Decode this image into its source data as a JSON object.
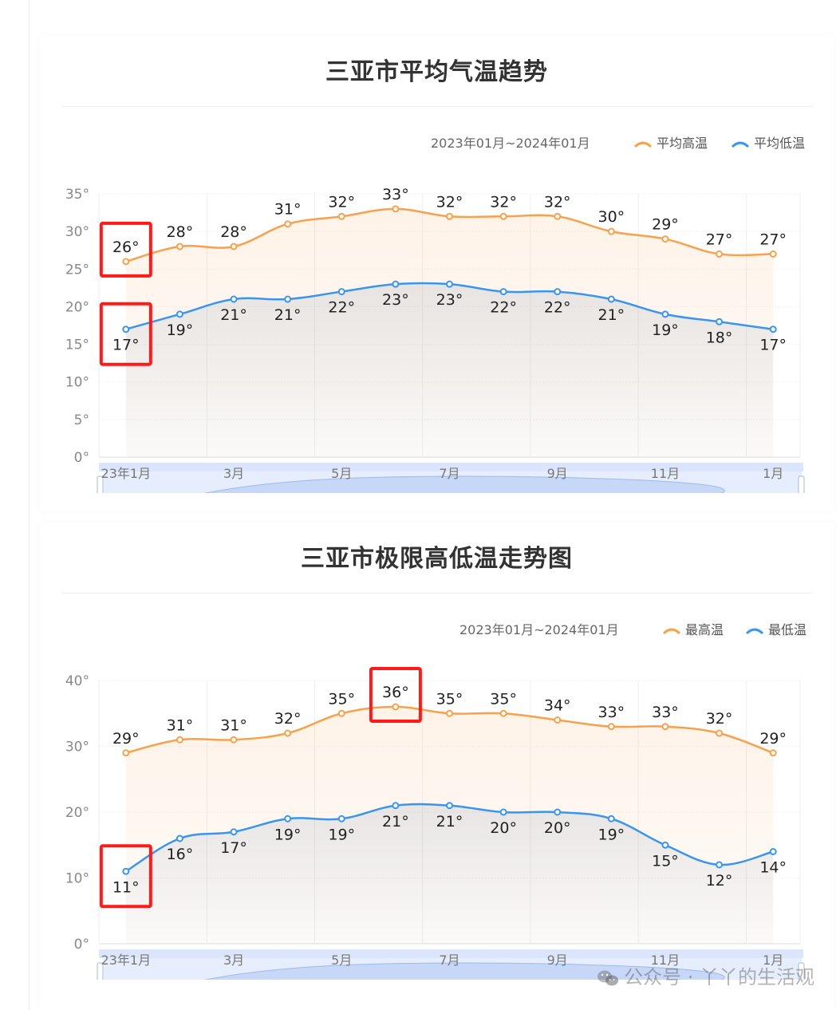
{
  "charts": [
    {
      "title": "三亚市平均气温趋势",
      "range_label": "2023年01月~2024年01月",
      "legend": [
        "平均高温",
        "平均低温"
      ],
      "colors": {
        "high": "#f7a14c",
        "low": "#3a95ee",
        "highlight": "#ff1a1a"
      }
    },
    {
      "title": "三亚市极限高低温走势图",
      "range_label": "2023年01月~2024年01月",
      "legend": [
        "最高温",
        "最低温"
      ],
      "colors": {
        "high": "#f7a14c",
        "low": "#3a95ee",
        "highlight": "#ff1a1a"
      }
    }
  ],
  "chart_data": [
    {
      "type": "line",
      "title": "三亚市平均气温趋势",
      "x": [
        "2023年1月",
        "2023年2月",
        "2023年3月",
        "2023年4月",
        "2023年5月",
        "2023年6月",
        "2023年7月",
        "2023年8月",
        "2023年9月",
        "2023年10月",
        "2023年11月",
        "2023年12月",
        "2024年1月"
      ],
      "xtick_labels": [
        "23年1月",
        "3月",
        "5月",
        "7月",
        "9月",
        "11月",
        "1月"
      ],
      "ylim": [
        0,
        35
      ],
      "yticks": [
        "0°",
        "5°",
        "10°",
        "15°",
        "20°",
        "25°",
        "30°",
        "35°"
      ],
      "series": [
        {
          "name": "平均高温",
          "values": [
            26,
            28,
            28,
            31,
            32,
            33,
            32,
            32,
            32,
            30,
            29,
            27,
            27
          ],
          "labels": [
            "26°",
            "28°",
            "28°",
            "31°",
            "32°",
            "33°",
            "32°",
            "32°",
            "32°",
            "30°",
            "29°",
            "27°",
            "27°"
          ]
        },
        {
          "name": "平均低温",
          "values": [
            17,
            19,
            21,
            21,
            22,
            23,
            23,
            22,
            22,
            21,
            19,
            18,
            17
          ],
          "labels": [
            "17°",
            "19°",
            "21°",
            "21°",
            "22°",
            "23°",
            "23°",
            "22°",
            "22°",
            "21°",
            "19°",
            "18°",
            "17°"
          ]
        }
      ],
      "highlighted_points": [
        {
          "series": 0,
          "index": 0
        },
        {
          "series": 1,
          "index": 0
        }
      ],
      "grid": true,
      "legend_position": "top-right"
    },
    {
      "type": "line",
      "title": "三亚市极限高低温走势图",
      "x": [
        "2023年1月",
        "2023年2月",
        "2023年3月",
        "2023年4月",
        "2023年5月",
        "2023年6月",
        "2023年7月",
        "2023年8月",
        "2023年9月",
        "2023年10月",
        "2023年11月",
        "2023年12月",
        "2024年1月"
      ],
      "xtick_labels": [
        "23年1月",
        "3月",
        "5月",
        "7月",
        "9月",
        "11月",
        "1月"
      ],
      "ylim": [
        0,
        40
      ],
      "yticks": [
        "0°",
        "10°",
        "20°",
        "30°",
        "40°"
      ],
      "series": [
        {
          "name": "最高温",
          "values": [
            29,
            31,
            31,
            32,
            35,
            36,
            35,
            35,
            34,
            33,
            33,
            32,
            29
          ],
          "labels": [
            "29°",
            "31°",
            "31°",
            "32°",
            "35°",
            "36°",
            "35°",
            "35°",
            "34°",
            "33°",
            "33°",
            "32°",
            "29°"
          ]
        },
        {
          "name": "最低温",
          "values": [
            11,
            16,
            17,
            19,
            19,
            21,
            21,
            20,
            20,
            19,
            15,
            12,
            14
          ],
          "labels": [
            "11°",
            "16°",
            "17°",
            "19°",
            "19°",
            "21°",
            "21°",
            "20°",
            "20°",
            "19°",
            "15°",
            "12°",
            "14°"
          ]
        }
      ],
      "highlighted_points": [
        {
          "series": 0,
          "index": 5
        },
        {
          "series": 1,
          "index": 0
        }
      ],
      "grid": true,
      "legend_position": "top-right"
    }
  ],
  "watermark": {
    "text": "公众号 · 丫丫的生活观",
    "icon": "wechat-icon"
  }
}
